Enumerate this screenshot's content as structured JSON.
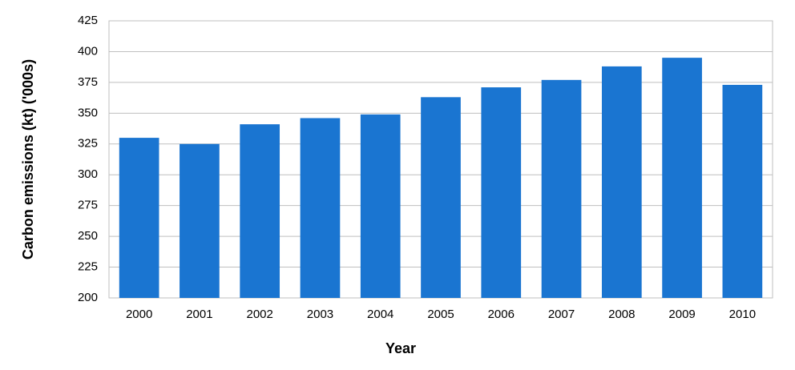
{
  "chart_data": {
    "type": "bar",
    "x_label": "Year",
    "y_label": "Carbon emissions (kt) ('000s)",
    "categories": [
      "2000",
      "2001",
      "2002",
      "2003",
      "2004",
      "2005",
      "2006",
      "2007",
      "2008",
      "2009",
      "2010"
    ],
    "values": [
      330,
      325,
      341,
      346,
      349,
      363,
      371,
      377,
      388,
      395,
      373
    ],
    "color": "#1a75d1",
    "ylim": [
      200,
      425
    ],
    "yticks": [
      200,
      225,
      250,
      275,
      300,
      325,
      350,
      375,
      400,
      425
    ],
    "grid": true
  }
}
